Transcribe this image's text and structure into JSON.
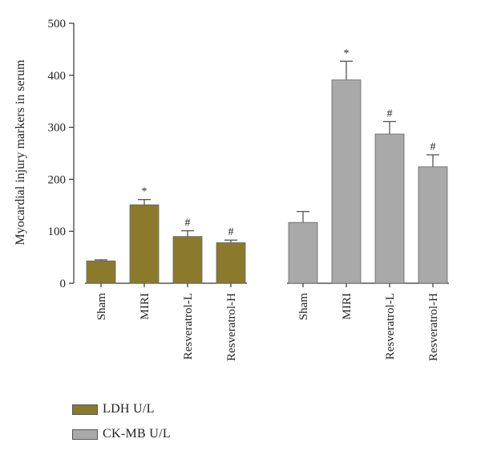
{
  "chart_data": {
    "type": "bar",
    "ylabel": "Myocardial injury markers in serum",
    "xlabel": "",
    "ylim": [
      0,
      500
    ],
    "yticks": [
      0,
      100,
      200,
      300,
      400,
      500
    ],
    "grid": false,
    "legend_position": "bottom-left",
    "categories": [
      "Sham",
      "MIRI",
      "Resveratrol-L",
      "Resveratrol-H"
    ],
    "series": [
      {
        "name": "LDH U/L",
        "color": "#8b7a2c",
        "values": [
          43,
          151,
          90,
          78
        ],
        "errors": [
          2,
          10,
          11,
          5
        ],
        "annotations": [
          "",
          "*",
          "#",
          "#"
        ]
      },
      {
        "name": "CK-MB U/L",
        "color": "#a9a9a9",
        "values": [
          117,
          391,
          287,
          224
        ],
        "errors": [
          21,
          36,
          24,
          23
        ],
        "annotations": [
          "",
          "*",
          "#",
          "#"
        ]
      }
    ]
  }
}
